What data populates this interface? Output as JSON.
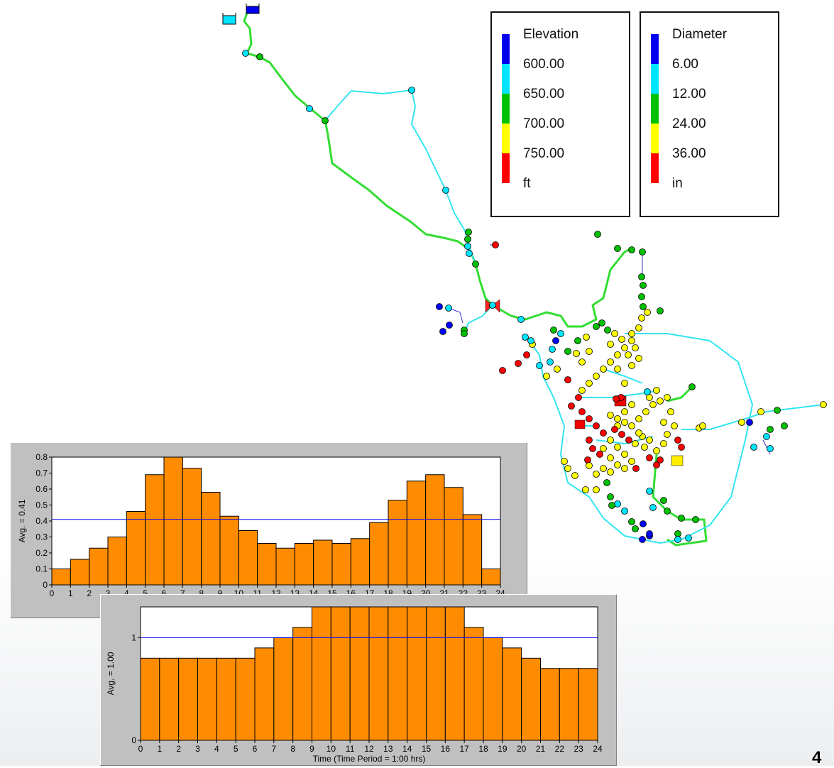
{
  "legend_elevation": {
    "title": "Elevation",
    "levels": [
      "600.00",
      "650.00",
      "700.00",
      "750.00"
    ],
    "unit": "ft",
    "colors": [
      "#0000ff",
      "#00e5ff",
      "#00c000",
      "#ffff00",
      "#ff0000"
    ]
  },
  "legend_diameter": {
    "title": "Diameter",
    "levels": [
      "6.00",
      "12.00",
      "24.00",
      "36.00"
    ],
    "unit": "in",
    "colors": [
      "#0000ff",
      "#00e5ff",
      "#00c000",
      "#ffff00",
      "#ff0000"
    ]
  },
  "page_number": "4",
  "chart_data": [
    {
      "type": "bar",
      "bar_color": "#ff8c00",
      "avg_line_color": "#0000ff",
      "ylabel": "Avg. = 0.41",
      "average": 0.41,
      "ylim": [
        0,
        0.8
      ],
      "yticks": [
        "0",
        "0.1",
        "0.2",
        "0.3",
        "0.4",
        "0.5",
        "0.6",
        "0.7",
        "0.8"
      ],
      "xticks": [
        "0",
        "1",
        "2",
        "3",
        "4",
        "5",
        "6",
        "7",
        "8",
        "9",
        "10",
        "11",
        "12",
        "13",
        "14",
        "15",
        "16",
        "17",
        "18",
        "19",
        "20",
        "21",
        "22",
        "23",
        "24"
      ],
      "values": [
        0.1,
        0.16,
        0.23,
        0.3,
        0.46,
        0.69,
        0.8,
        0.73,
        0.58,
        0.43,
        0.34,
        0.26,
        0.23,
        0.26,
        0.28,
        0.26,
        0.29,
        0.39,
        0.53,
        0.65,
        0.69,
        0.61,
        0.44,
        0.1
      ]
    },
    {
      "type": "bar",
      "bar_color": "#ff8c00",
      "avg_line_color": "#0000ff",
      "ylabel": "Avg. = 1.00",
      "xlabel": "Time (Time Period = 1:00  hrs)",
      "average": 1.0,
      "ylim": [
        0,
        1.3
      ],
      "yticks": [
        "0",
        "1"
      ],
      "xticks": [
        "0",
        "1",
        "2",
        "3",
        "4",
        "5",
        "6",
        "7",
        "8",
        "9",
        "10",
        "11",
        "12",
        "13",
        "14",
        "15",
        "16",
        "17",
        "18",
        "19",
        "20",
        "21",
        "22",
        "23",
        "24"
      ],
      "values": [
        0.8,
        0.8,
        0.8,
        0.8,
        0.8,
        0.8,
        0.9,
        1.0,
        1.1,
        1.3,
        1.3,
        1.3,
        1.3,
        1.3,
        1.3,
        1.3,
        1.3,
        1.1,
        1.0,
        0.9,
        0.8,
        0.7,
        0.7,
        0.7
      ]
    }
  ]
}
